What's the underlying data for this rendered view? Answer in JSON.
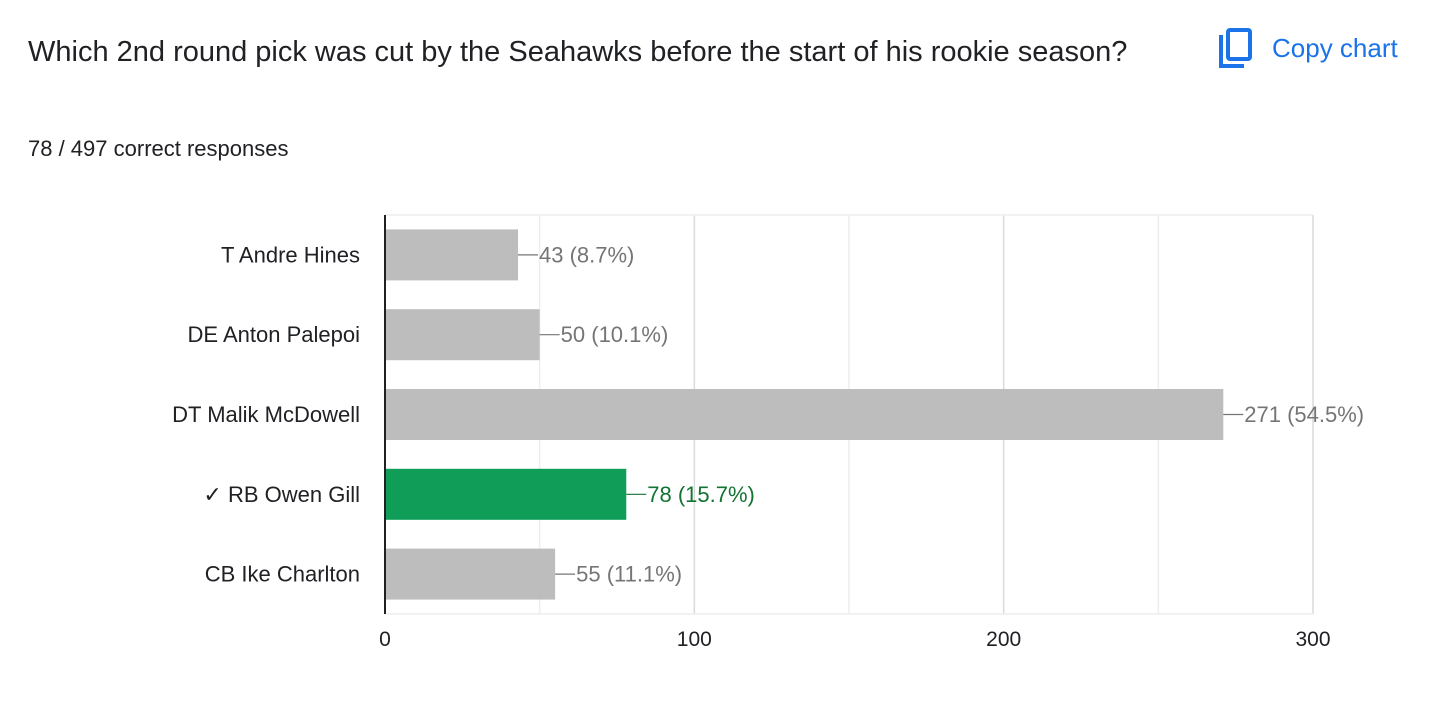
{
  "question": {
    "title": "Which 2nd round pick was cut by the Seahawks before the start of his rookie season?",
    "summary": "78 / 497 correct responses"
  },
  "toolbar": {
    "copy_label": "Copy chart",
    "copy_icon": "copy-icon",
    "accent_color": "#1a73e8"
  },
  "colors": {
    "bar_default": "#bdbdbd",
    "bar_correct": "#0f9d58",
    "label_default": "#757575",
    "label_correct": "#137333"
  },
  "chart_data": {
    "type": "bar",
    "orientation": "horizontal",
    "categories": [
      "T Andre Hines",
      "DE Anton Palepoi",
      "DT Malik McDowell",
      "✓ RB Owen Gill",
      "CB Ike Charlton"
    ],
    "values": [
      43,
      50,
      271,
      78,
      55
    ],
    "data_labels": [
      "43 (8.7%)",
      "50 (10.1%)",
      "271 (54.5%)",
      "78 (15.7%)",
      "55 (11.1%)"
    ],
    "correct_index": 3,
    "xlim": [
      0,
      300
    ],
    "x_ticks": [
      0,
      100,
      200,
      300
    ],
    "grid": true,
    "title": "",
    "xlabel": "",
    "ylabel": ""
  }
}
